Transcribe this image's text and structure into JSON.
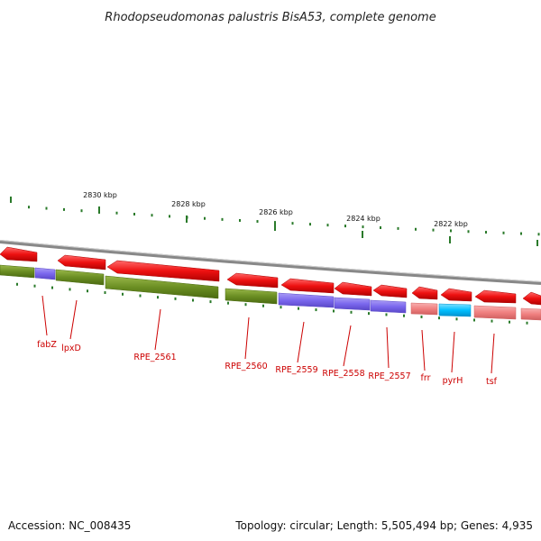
{
  "title": "Rhodopseudomonas palustris BisA53, complete genome",
  "footer": {
    "accession": "Accession: NC_008435",
    "topology": "Topology: circular; Length: 5,505,494 bp; Genes: 4,935"
  },
  "scale_labels": [
    "2830 kbp",
    "2828 kbp",
    "2826 kbp",
    "2824 kbp",
    "2822 kbp"
  ],
  "gene_labels": [
    "fabZ",
    "lpxD",
    "RPE_2561",
    "RPE_2560",
    "RPE_2559",
    "RPE_2558",
    "RPE_2557",
    "frr",
    "pyrH",
    "tsf"
  ],
  "colors": {
    "arrow_red": "#ee1111",
    "olive": "#6b8e23",
    "purple": "#7b68ee",
    "pink": "#f08080",
    "cyan": "#00bfff",
    "label_red": "#cc0000",
    "backbone": "#888888",
    "tick_green": "#2a7a2a"
  }
}
